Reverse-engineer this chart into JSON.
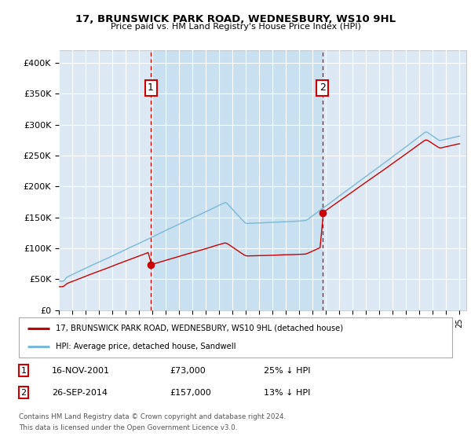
{
  "title_line1": "17, BRUNSWICK PARK ROAD, WEDNESBURY, WS10 9HL",
  "title_line2": "Price paid vs. HM Land Registry's House Price Index (HPI)",
  "ylabel_ticks": [
    "£0",
    "£50K",
    "£100K",
    "£150K",
    "£200K",
    "£250K",
    "£300K",
    "£350K",
    "£400K"
  ],
  "ytick_values": [
    0,
    50000,
    100000,
    150000,
    200000,
    250000,
    300000,
    350000,
    400000
  ],
  "ylim": [
    0,
    420000
  ],
  "xlim_start": 1995.0,
  "xlim_end": 2025.5,
  "bg_color": "#dce9f5",
  "grid_color": "#ffffff",
  "sale1_date": 2001.88,
  "sale1_price": 73000,
  "sale2_date": 2014.73,
  "sale2_price": 157000,
  "hpi_color": "#7ab8d8",
  "price_color": "#cc0000",
  "shade_color": "#c5dff0",
  "legend_label1": "17, BRUNSWICK PARK ROAD, WEDNESBURY, WS10 9HL (detached house)",
  "legend_label2": "HPI: Average price, detached house, Sandwell",
  "footer_line1": "Contains HM Land Registry data © Crown copyright and database right 2024.",
  "footer_line2": "This data is licensed under the Open Government Licence v3.0."
}
